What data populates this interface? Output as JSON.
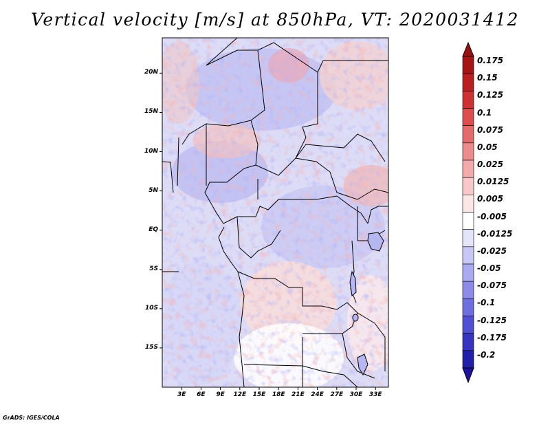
{
  "title": "Vertical velocity [m/s] at 850hPa, VT: 2020031412",
  "credit": "GrADS: IGES/COLA",
  "map": {
    "variable": "Vertical velocity",
    "units": "m/s",
    "level": "850hPa",
    "valid_time": "2020031412",
    "lon_range": [
      0,
      35
    ],
    "lat_range": [
      -20,
      24.5
    ],
    "lat_ticks": [
      {
        "value": 20,
        "label": "20N"
      },
      {
        "value": 15,
        "label": "15N"
      },
      {
        "value": 10,
        "label": "10N"
      },
      {
        "value": 5,
        "label": "5N"
      },
      {
        "value": 0,
        "label": "EQ"
      },
      {
        "value": -5,
        "label": "5S"
      },
      {
        "value": -10,
        "label": "10S"
      },
      {
        "value": -15,
        "label": "15S"
      }
    ],
    "lon_ticks": [
      {
        "value": 3,
        "label": "3E"
      },
      {
        "value": 6,
        "label": "6E"
      },
      {
        "value": 9,
        "label": "9E"
      },
      {
        "value": 12,
        "label": "12E"
      },
      {
        "value": 15,
        "label": "15E"
      },
      {
        "value": 18,
        "label": "18E"
      },
      {
        "value": 21,
        "label": "21E"
      },
      {
        "value": 24,
        "label": "24E"
      },
      {
        "value": 27,
        "label": "27E"
      },
      {
        "value": 30,
        "label": "30E"
      },
      {
        "value": 33,
        "label": "33E"
      }
    ]
  },
  "colorbar": {
    "levels": [
      {
        "label": "0.175",
        "color": "#a51515"
      },
      {
        "label": "0.15",
        "color": "#b91f1f"
      },
      {
        "label": "0.125",
        "color": "#cc3232"
      },
      {
        "label": "0.1",
        "color": "#dc4d4d"
      },
      {
        "label": "0.075",
        "color": "#e46b6b"
      },
      {
        "label": "0.05",
        "color": "#ec8b8b"
      },
      {
        "label": "0.025",
        "color": "#f3aaaa"
      },
      {
        "label": "0.0125",
        "color": "#f8c8c8"
      },
      {
        "label": "0.005",
        "color": "#fce6e6"
      },
      {
        "label": "-0.005",
        "color": "#ffffff"
      },
      {
        "label": "-0.0125",
        "color": "#e4e4fb"
      },
      {
        "label": "-0.025",
        "color": "#c7c7f6"
      },
      {
        "label": "-0.05",
        "color": "#aaaaf0"
      },
      {
        "label": "-0.075",
        "color": "#8c8ce8"
      },
      {
        "label": "-0.1",
        "color": "#6e6edf"
      },
      {
        "label": "-0.125",
        "color": "#5050d2"
      },
      {
        "label": "-0.175",
        "color": "#3535c0"
      },
      {
        "label": "-0.2",
        "color": "#2020a8"
      }
    ],
    "top_extension_color": "#9a1010",
    "bottom_extension_color": "#1e10a0"
  }
}
